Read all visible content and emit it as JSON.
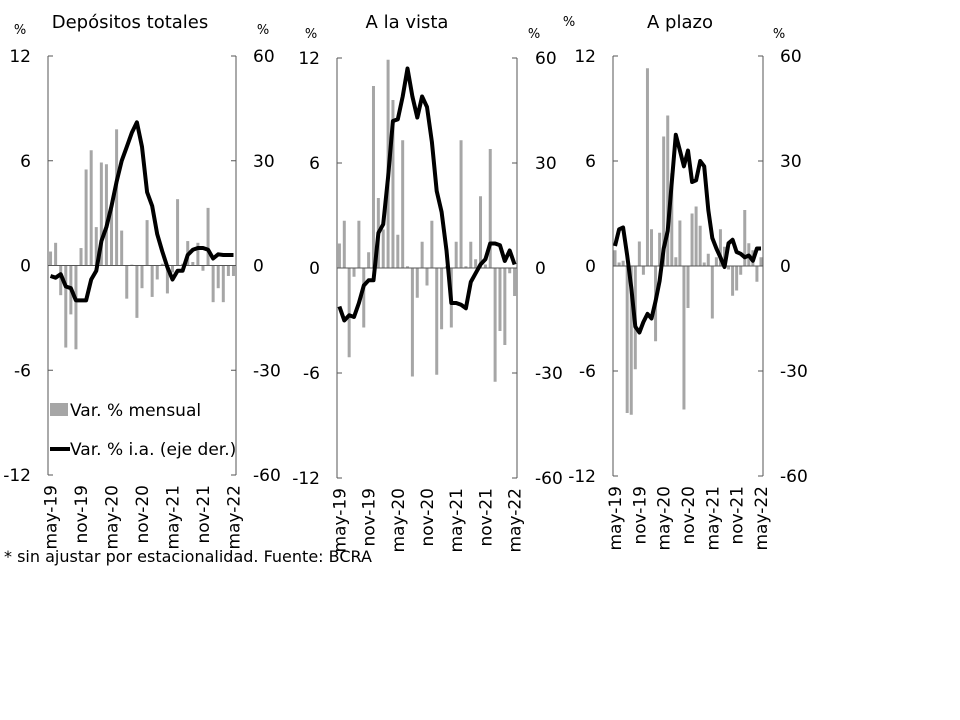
{
  "footnote": "* sin ajustar por estacionalidad. Fuente: BCRA",
  "colors": {
    "bar": "#a6a6a6",
    "line": "#000000",
    "axis": "#555555"
  },
  "chart_data": [
    {
      "type": "bar+line",
      "title": "Depósitos totales",
      "ylabel_left": "%",
      "ylabel_right": "%",
      "ylim_left": [
        -12,
        12
      ],
      "ylim_right": [
        -60,
        60
      ],
      "yticks_left": [
        "12",
        "6",
        "0",
        "-6",
        "-12"
      ],
      "yticks_right": [
        "60",
        "30",
        "0",
        "-30",
        "-60"
      ],
      "xticks": [
        "may-19",
        "nov-19",
        "may-20",
        "nov-20",
        "may-21",
        "nov-21",
        "may-22"
      ],
      "legend": {
        "bar": "Var. % mensual",
        "line": "Var. % i.a. (eje der.)"
      },
      "series": [
        {
          "name": "Var. % mensual",
          "axis": "left",
          "values": [
            0.8,
            1.3,
            -1.7,
            -4.7,
            -2.8,
            -4.8,
            1.0,
            5.5,
            6.6,
            2.2,
            5.9,
            5.8,
            3.3,
            7.8,
            2.0,
            -1.9,
            0.05,
            -3.0,
            -1.3,
            2.6,
            -1.8,
            -0.8,
            0.1,
            -1.6,
            -0.4,
            3.8,
            0.1,
            1.4,
            0.2,
            1.3,
            -0.3,
            3.3,
            -2.1,
            -1.3,
            -2.1,
            -0.6,
            -0.6
          ]
        },
        {
          "name": "Var. % i.a. (eje der.)",
          "axis": "right",
          "values": [
            -3,
            -3.5,
            -2.5,
            -6,
            -6.5,
            -10,
            -10,
            -10,
            -4,
            -1.5,
            7,
            11,
            17,
            24,
            30,
            34,
            38,
            41,
            34,
            21,
            17,
            9,
            4,
            -0.5,
            -4,
            -1.5,
            -1.5,
            3,
            4.5,
            5,
            5,
            4.5,
            2,
            3.2,
            3,
            3,
            3
          ]
        }
      ]
    },
    {
      "type": "bar+line",
      "title": "A la vista",
      "ylabel_left": "%",
      "ylabel_right": "%",
      "ylim_left": [
        -12,
        12
      ],
      "ylim_right": [
        -60,
        60
      ],
      "yticks_left": [
        "12",
        "6",
        "0",
        "-6",
        "-12"
      ],
      "yticks_right": [
        "60",
        "30",
        "0",
        "-30",
        "-60"
      ],
      "xticks": [
        "may-19",
        "nov-19",
        "may-20",
        "nov-20",
        "may-21",
        "nov-21",
        "may-22"
      ],
      "series": [
        {
          "name": "Var. % mensual",
          "axis": "left",
          "values": [
            1.4,
            2.7,
            -5.1,
            -0.5,
            2.7,
            -3.4,
            0.9,
            10.4,
            4.0,
            2.2,
            11.9,
            9.6,
            1.9,
            7.3,
            0.1,
            -6.2,
            -1.7,
            1.5,
            -1.0,
            2.7,
            -6.1,
            -3.5,
            0.1,
            -3.4,
            1.5,
            7.3,
            0.1,
            1.5,
            0.5,
            4.1,
            0.2,
            6.8,
            -6.5,
            -3.6,
            -4.4,
            -0.3,
            -1.6
          ]
        },
        {
          "name": "Var. % i.a. (eje der.)",
          "axis": "right",
          "values": [
            -11,
            -15,
            -13.5,
            -14,
            -10,
            -5,
            -3.5,
            -3.5,
            10,
            12.5,
            26,
            42,
            42.5,
            49,
            57,
            49,
            43,
            49,
            46,
            36,
            22,
            16,
            5,
            -10,
            -10,
            -10.5,
            -11.5,
            -4,
            -1.5,
            1,
            2.5,
            7,
            7,
            6.5,
            2,
            5,
            1
          ]
        }
      ]
    },
    {
      "type": "bar+line",
      "title": "A plazo",
      "ylabel_left": "%",
      "ylabel_right": "%",
      "ylim_left": [
        -12,
        12
      ],
      "ylim_right": [
        -60,
        60
      ],
      "yticks_left": [
        "12",
        "6",
        "0",
        "-6",
        "-12"
      ],
      "yticks_right": [
        "60",
        "30",
        "0",
        "-30",
        "-60"
      ],
      "xticks": [
        "may-19",
        "nov-19",
        "may-20",
        "nov-20",
        "may-21",
        "nov-21",
        "may-22"
      ],
      "series": [
        {
          "name": "Var. % mensual",
          "axis": "left",
          "values": [
            0.9,
            0.2,
            0.3,
            -8.4,
            -8.5,
            -5.9,
            1.4,
            -0.5,
            11.3,
            2.1,
            -4.3,
            1.9,
            7.4,
            8.6,
            5.3,
            0.5,
            2.6,
            -8.2,
            -2.4,
            3.0,
            3.4,
            2.3,
            0.2,
            0.7,
            -3.0,
            0.5,
            2.1,
            1.1,
            -0.2,
            -1.7,
            -1.4,
            -0.5,
            3.2,
            1.3,
            0.9,
            -0.9,
            0.5
          ]
        },
        {
          "name": "Var. % i.a. (eje der.)",
          "axis": "right",
          "values": [
            5.7,
            10.5,
            11,
            3,
            -6,
            -17.3,
            -19,
            -16,
            -13.7,
            -15,
            -10,
            -4.3,
            5,
            10,
            24,
            37.5,
            33,
            28.5,
            33,
            24,
            24.5,
            30,
            28.5,
            16,
            8,
            5,
            2.5,
            -0.3,
            6.5,
            7.5,
            4,
            3.5,
            2.5,
            3,
            1.5,
            5,
            5
          ]
        }
      ]
    }
  ]
}
